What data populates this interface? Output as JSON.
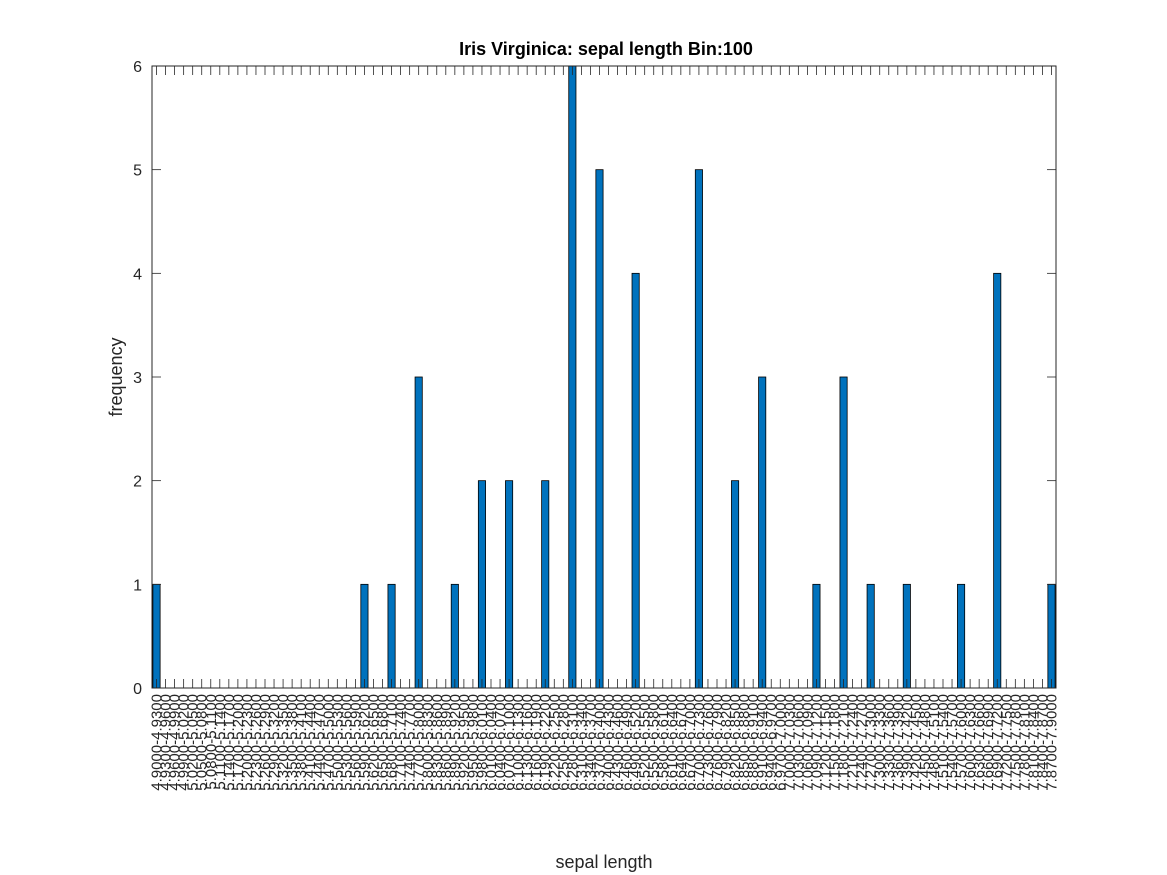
{
  "chart_data": {
    "type": "bar",
    "title": "Iris Virginica: sepal length Bin:100",
    "xlabel": "sepal length",
    "ylabel": "frequency",
    "ylim": [
      0,
      6
    ],
    "yticks": [
      "0",
      "1",
      "2",
      "3",
      "4",
      "5",
      "6"
    ],
    "bar_color": "#0072BD",
    "grid": false,
    "categories": [
      "4.9000-4.9300",
      "4.9300-4.9600",
      "4.9600-4.9900",
      "4.9900-5.0200",
      "5.0200-5.0500",
      "5.0500-5.0800",
      "5.0800-5.1100",
      "5.1100-5.1400",
      "5.1400-5.1700",
      "5.1700-5.2000",
      "5.2000-5.2300",
      "5.2300-5.2600",
      "5.2600-5.2900",
      "5.2900-5.3200",
      "5.3200-5.3500",
      "5.3500-5.3800",
      "5.3800-5.4100",
      "5.4100-5.4400",
      "5.4400-5.4700",
      "5.4700-5.5000",
      "5.5000-5.5300",
      "5.5300-5.5600",
      "5.5600-5.5900",
      "5.5900-5.6200",
      "5.6200-5.6500",
      "5.6500-5.6800",
      "5.6800-5.7100",
      "5.7100-5.7400",
      "5.7400-5.7700",
      "5.7700-5.8000",
      "5.8000-5.8300",
      "5.8300-5.8600",
      "5.8600-5.8900",
      "5.8900-5.9200",
      "5.9200-5.9500",
      "5.9500-5.9800",
      "5.9800-6.0100",
      "6.0100-6.0400",
      "6.0400-6.0700",
      "6.0700-6.1000",
      "6.1000-6.1300",
      "6.1300-6.1600",
      "6.1600-6.1900",
      "6.1900-6.2200",
      "6.2200-6.2500",
      "6.2500-6.2800",
      "6.2800-6.3100",
      "6.3100-6.3400",
      "6.3400-6.3700",
      "6.3700-6.4000",
      "6.4000-6.4300",
      "6.4300-6.4600",
      "6.4600-6.4900",
      "6.4900-6.5200",
      "6.5200-6.5500",
      "6.5500-6.5800",
      "6.5800-6.6100",
      "6.6100-6.6400",
      "6.6400-6.6700",
      "6.6700-6.7000",
      "6.7000-6.7300",
      "6.7300-6.7600",
      "6.7600-6.7900",
      "6.7900-6.8200",
      "6.8200-6.8500",
      "6.8500-6.8800",
      "6.8800-6.9100",
      "6.9100-6.9400",
      "6.9400-6.9700",
      "6.9700-7.0000",
      "7.0000-7.0300",
      "7.0300-7.0600",
      "7.0600-7.0900",
      "7.0900-7.1200",
      "7.1200-7.1500",
      "7.1500-7.1800",
      "7.1800-7.2100",
      "7.2100-7.2400",
      "7.2400-7.2700",
      "7.2700-7.3000",
      "7.3000-7.3300",
      "7.3300-7.3600",
      "7.3600-7.3900",
      "7.3900-7.4200",
      "7.4200-7.4500",
      "7.4500-7.4800",
      "7.4800-7.5100",
      "7.5100-7.5400",
      "7.5400-7.5700",
      "7.5700-7.6000",
      "7.6000-7.6300",
      "7.6300-7.6600",
      "7.6600-7.6900",
      "7.6900-7.7200",
      "7.7200-7.7500",
      "7.7500-7.7800",
      "7.7800-7.8100",
      "7.8100-7.8400",
      "7.8400-7.8700",
      "7.8700-7.9000"
    ],
    "values": [
      1,
      0,
      0,
      0,
      0,
      0,
      0,
      0,
      0,
      0,
      0,
      0,
      0,
      0,
      0,
      0,
      0,
      0,
      0,
      0,
      0,
      0,
      0,
      1,
      0,
      0,
      1,
      0,
      0,
      3,
      0,
      0,
      0,
      1,
      0,
      0,
      2,
      0,
      0,
      2,
      0,
      0,
      0,
      2,
      0,
      0,
      6,
      0,
      0,
      5,
      0,
      0,
      0,
      4,
      0,
      0,
      0,
      0,
      0,
      0,
      5,
      0,
      0,
      0,
      2,
      0,
      0,
      3,
      0,
      0,
      0,
      0,
      0,
      1,
      0,
      0,
      3,
      0,
      0,
      1,
      0,
      0,
      0,
      1,
      0,
      0,
      0,
      0,
      0,
      1,
      0,
      0,
      0,
      4,
      0,
      0,
      0,
      0,
      0,
      1
    ]
  }
}
